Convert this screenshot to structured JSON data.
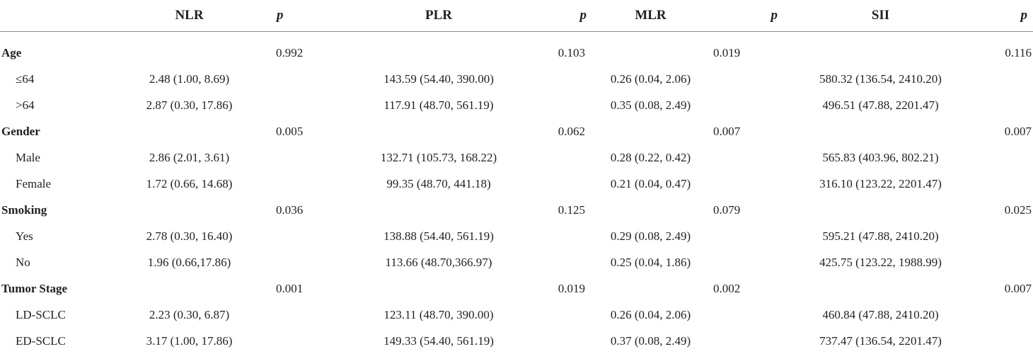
{
  "headers": [
    "",
    "NLR",
    "p",
    "PLR",
    "p",
    "MLR",
    "p",
    "SII",
    "p"
  ],
  "rows": [
    {
      "type": "group",
      "label": "Age",
      "p": [
        "0.992",
        "0.103",
        "0.019",
        "0.116"
      ]
    },
    {
      "type": "sub",
      "label": "≤64",
      "v": [
        "2.48 (1.00, 8.69)",
        "143.59 (54.40, 390.00)",
        "0.26 (0.04, 2.06)",
        "580.32 (136.54, 2410.20)"
      ]
    },
    {
      "type": "sub",
      "label": ">64",
      "v": [
        "2.87 (0.30, 17.86)",
        "117.91 (48.70, 561.19)",
        "0.35 (0.08, 2.49)",
        "496.51 (47.88, 2201.47)"
      ]
    },
    {
      "type": "group",
      "label": "Gender",
      "p": [
        "0.005",
        "0.062",
        "0.007",
        "0.007"
      ]
    },
    {
      "type": "sub",
      "label": "Male",
      "v": [
        "2.86 (2.01, 3.61)",
        "132.71 (105.73, 168.22)",
        "0.28 (0.22, 0.42)",
        "565.83 (403.96, 802.21)"
      ]
    },
    {
      "type": "sub",
      "label": "Female",
      "v": [
        "1.72 (0.66, 14.68)",
        "99.35 (48.70, 441.18)",
        "0.21 (0.04, 0.47)",
        "316.10 (123.22, 2201.47)"
      ]
    },
    {
      "type": "group",
      "label": "Smoking",
      "p": [
        "0.036",
        "0.125",
        "0.079",
        "0.025"
      ]
    },
    {
      "type": "sub",
      "label": "Yes",
      "v": [
        "2.78 (0.30, 16.40)",
        "138.88 (54.40, 561.19)",
        "0.29 (0.08, 2.49)",
        "595.21 (47.88, 2410.20)"
      ]
    },
    {
      "type": "sub",
      "label": "No",
      "v": [
        "1.96 (0.66,17.86)",
        "113.66 (48.70,366.97)",
        "0.25 (0.04, 1.86)",
        "425.75 (123.22, 1988.99)"
      ]
    },
    {
      "type": "group",
      "label": "Tumor Stage",
      "p": [
        "0.001",
        "0.019",
        "0.002",
        "0.007"
      ]
    },
    {
      "type": "sub",
      "label": "LD-SCLC",
      "v": [
        "2.23 (0.30, 6.87)",
        "123.11 (48.70, 390.00)",
        "0.26 (0.04, 2.06)",
        "460.84 (47.88, 2410.20)"
      ]
    },
    {
      "type": "sub",
      "label": "ED-SCLC",
      "v": [
        "3.17 (1.00, 17.86)",
        "149.33 (54.40, 561.19)",
        "0.37 (0.08, 2.49)",
        "737.47 (136.54, 2201.47)"
      ]
    }
  ]
}
